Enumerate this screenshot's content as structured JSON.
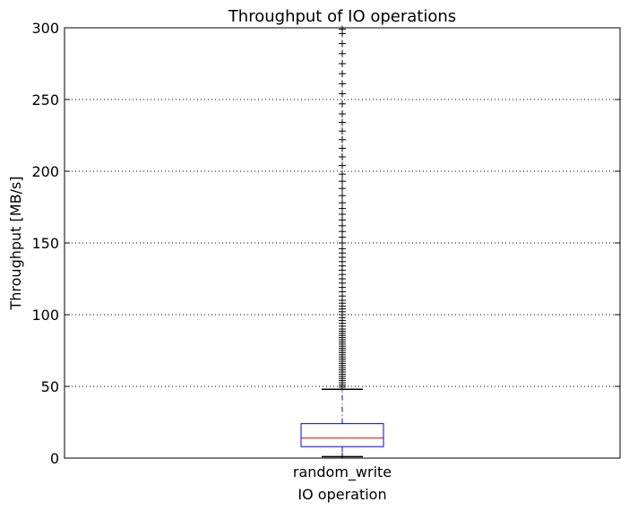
{
  "chart_data": {
    "type": "box",
    "title": "Throughput of IO operations",
    "xlabel": "IO operation",
    "ylabel": "Throughput [MB/s]",
    "categories": [
      "random_write"
    ],
    "ylim": [
      0,
      300
    ],
    "yticks": [
      0,
      50,
      100,
      150,
      200,
      250,
      300
    ],
    "grid": "y-dotted",
    "boxes": [
      {
        "category": "random_write",
        "whisker_low": 1,
        "q1": 8,
        "median": 14,
        "q3": 24,
        "whisker_high": 48,
        "outliers": [
          49.5,
          51,
          52.5,
          54,
          55.5,
          57,
          58.5,
          60,
          61.5,
          63,
          64.5,
          66,
          67.5,
          69,
          70.5,
          72,
          73.5,
          75,
          76.5,
          78,
          79.5,
          81,
          82.5,
          84,
          85.5,
          87,
          88.5,
          90,
          92,
          94,
          96,
          98,
          100,
          102,
          104,
          106,
          108,
          110,
          113,
          116,
          119,
          122,
          125,
          128,
          131,
          134,
          137,
          140,
          143,
          146,
          150,
          154,
          158,
          162,
          166,
          170,
          174,
          178,
          183,
          188,
          193,
          198,
          204,
          210,
          216,
          222,
          228,
          234,
          240,
          247,
          254,
          261,
          268,
          275,
          282,
          289,
          296,
          299
        ]
      }
    ],
    "colors": {
      "box": "#0000ff",
      "median": "#ff0000",
      "whisker": "#0000ff",
      "cap": "#000000",
      "outlier": "#000000"
    }
  }
}
